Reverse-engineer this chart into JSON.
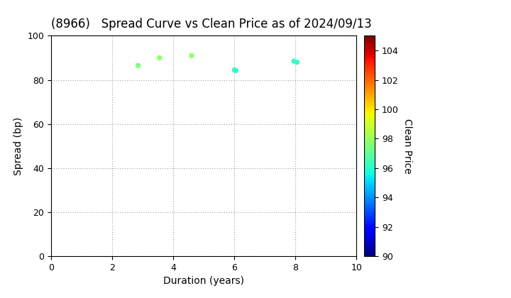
{
  "title": "(8966)   Spread Curve vs Clean Price as of 2024/09/13",
  "xlabel": "Duration (years)",
  "ylabel": "Spread (bp)",
  "colorbar_label": "Clean Price",
  "xlim": [
    0,
    10
  ],
  "ylim": [
    0,
    100
  ],
  "xticks": [
    0,
    2,
    4,
    6,
    8,
    10
  ],
  "yticks": [
    0,
    20,
    40,
    60,
    80,
    100
  ],
  "colorbar_min": 90,
  "colorbar_max": 105,
  "colorbar_ticks": [
    90,
    92,
    94,
    96,
    98,
    100,
    102,
    104
  ],
  "points": [
    {
      "duration": 2.85,
      "spread": 86.5,
      "price": 97.5
    },
    {
      "duration": 3.55,
      "spread": 90.0,
      "price": 97.8
    },
    {
      "duration": 4.6,
      "spread": 91.0,
      "price": 97.9
    },
    {
      "duration": 6.0,
      "spread": 84.5,
      "price": 96.2
    },
    {
      "duration": 6.05,
      "spread": 84.2,
      "price": 96.0
    },
    {
      "duration": 7.95,
      "spread": 88.5,
      "price": 96.3
    },
    {
      "duration": 8.05,
      "spread": 88.0,
      "price": 96.1
    }
  ],
  "marker_size": 18,
  "background_color": "#ffffff",
  "plot_bg_color": "#ffffff",
  "grid_color": "#999999",
  "title_fontsize": 12,
  "axis_fontsize": 10,
  "tick_fontsize": 9,
  "cbar_fontsize": 10
}
